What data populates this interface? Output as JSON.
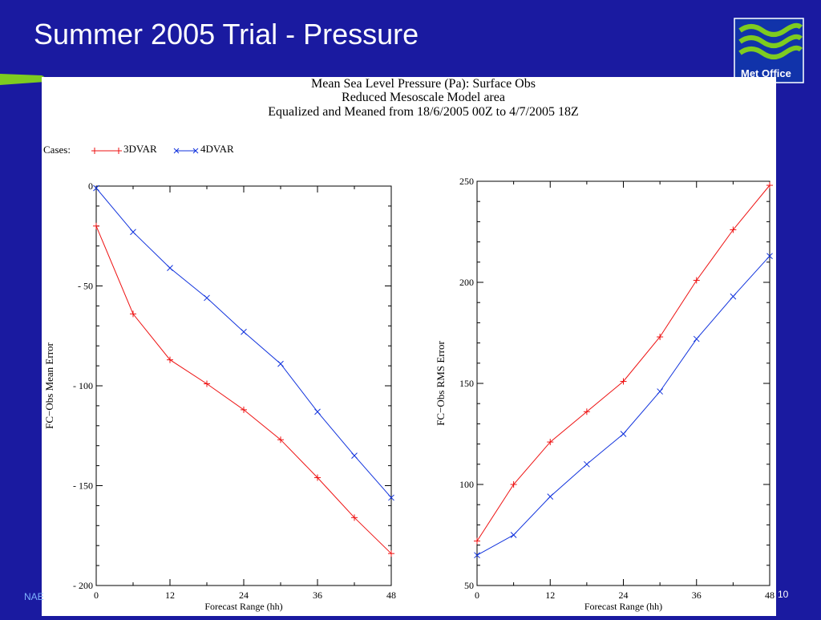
{
  "slide": {
    "title": "Summer 2005 Trial - Pressure",
    "logo_text": "Met Office",
    "footer_left": "NAE",
    "page_number": "10",
    "colors": {
      "background": "#1a1aa0",
      "accent": "#7ecb20",
      "series_3dvar": "#ee1111",
      "series_4dvar": "#1133dd"
    }
  },
  "chart_header": {
    "line1": "Mean Sea Level Pressure (Pa):  Surface Obs",
    "line2": "Reduced Mesoscale Model area",
    "line3": "Equalized and Meaned from 18/6/2005 00Z to 4/7/2005 18Z"
  },
  "legend": {
    "label": "Cases:",
    "items": [
      "3DVAR",
      "4DVAR"
    ]
  },
  "chart_data": [
    {
      "type": "line",
      "ylabel": "FC−Obs Mean Error",
      "xlabel": "Forecast Range (hh)",
      "xlim": [
        0,
        48
      ],
      "ylim": [
        -200,
        0
      ],
      "xticks": [
        0,
        12,
        24,
        36,
        48
      ],
      "yticks": [
        0,
        -50,
        -100,
        -150,
        -200
      ],
      "ytick_labels": [
        "0",
        "- 50",
        "- 100",
        "- 150",
        "- 200"
      ],
      "x": [
        0,
        6,
        12,
        18,
        24,
        30,
        36,
        42,
        48
      ],
      "series": [
        {
          "name": "3DVAR",
          "marker": "plus",
          "values": [
            -20,
            -64,
            -87,
            -99,
            -112,
            -127,
            -146,
            -166,
            -184
          ]
        },
        {
          "name": "4DVAR",
          "marker": "cross",
          "values": [
            -1,
            -23,
            -41,
            -56,
            -73,
            -89,
            -113,
            -135,
            -156
          ]
        }
      ]
    },
    {
      "type": "line",
      "ylabel": "FC−Obs RMS Error",
      "xlabel": "Forecast Range (hh)",
      "xlim": [
        0,
        48
      ],
      "ylim": [
        50,
        250
      ],
      "xticks": [
        0,
        12,
        24,
        36,
        48
      ],
      "yticks": [
        250,
        200,
        150,
        100,
        50
      ],
      "ytick_labels": [
        "250",
        "200",
        "150",
        "100",
        "50"
      ],
      "x": [
        0,
        6,
        12,
        18,
        24,
        30,
        36,
        42,
        48
      ],
      "series": [
        {
          "name": "3DVAR",
          "marker": "plus",
          "values": [
            72,
            100,
            121,
            136,
            151,
            173,
            201,
            226,
            248
          ]
        },
        {
          "name": "4DVAR",
          "marker": "cross",
          "values": [
            65,
            75,
            94,
            110,
            125,
            146,
            172,
            193,
            213
          ]
        }
      ]
    }
  ]
}
